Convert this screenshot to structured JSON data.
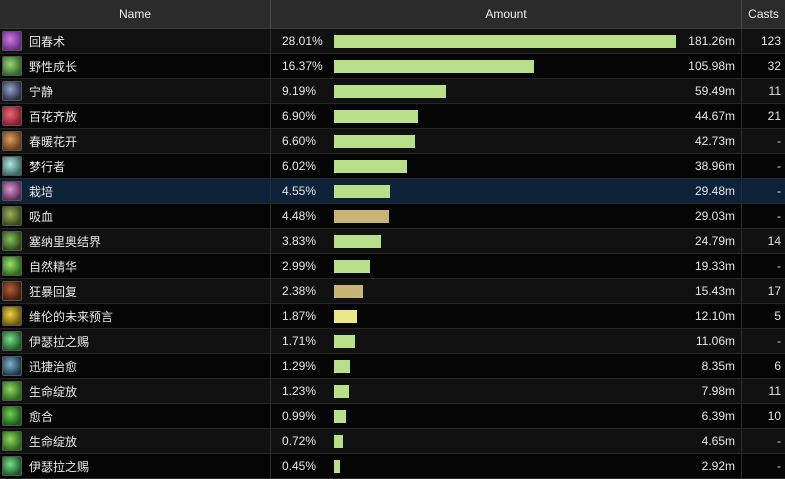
{
  "header": {
    "name": "Name",
    "amount": "Amount",
    "casts": "Casts"
  },
  "colors": {
    "green_bar": "#b8e08a",
    "tan_bar": "#c8b475",
    "yellow_bar": "#e8e88a"
  },
  "max_value": 181.26,
  "rows": [
    {
      "name": "回春术",
      "percent": "28.01%",
      "value": "181.26m",
      "fraction": 1.0,
      "casts": "123",
      "bar": "green",
      "icon": "rejuvenation-icon",
      "c1": "#6a2a8a",
      "c2": "#d27be0"
    },
    {
      "name": "野性成长",
      "percent": "16.37%",
      "value": "105.98m",
      "fraction": 0.5847,
      "casts": "32",
      "bar": "green",
      "icon": "wild-growth-icon",
      "c1": "#2f6a2a",
      "c2": "#9ad47a"
    },
    {
      "name": "宁静",
      "percent": "9.19%",
      "value": "59.49m",
      "fraction": 0.3282,
      "casts": "11",
      "bar": "green",
      "icon": "tranquility-icon",
      "c1": "#2a2f4a",
      "c2": "#9aa0c8"
    },
    {
      "name": "百花齐放",
      "percent": "6.90%",
      "value": "44.67m",
      "fraction": 0.2464,
      "casts": "21",
      "bar": "green",
      "icon": "efflorescence-icon",
      "c1": "#8a1a2a",
      "c2": "#e86a7a"
    },
    {
      "name": "春暖花开",
      "percent": "6.60%",
      "value": "42.73m",
      "fraction": 0.2357,
      "casts": "-",
      "bar": "green",
      "icon": "spring-blossoms-icon",
      "c1": "#6a3a1a",
      "c2": "#d8a060"
    },
    {
      "name": "梦行者",
      "percent": "6.02%",
      "value": "38.96m",
      "fraction": 0.2149,
      "casts": "-",
      "bar": "green",
      "icon": "dreamwalker-icon",
      "c1": "#3a6a6a",
      "c2": "#b0e8e0"
    },
    {
      "name": "栽培",
      "percent": "4.55%",
      "value": "29.48m",
      "fraction": 0.1626,
      "casts": "-",
      "bar": "green",
      "icon": "cultivation-icon",
      "c1": "#5a2a5a",
      "c2": "#d89ad0",
      "selected": true
    },
    {
      "name": "吸血",
      "percent": "4.48%",
      "value": "29.03m",
      "fraction": 0.1602,
      "casts": "-",
      "bar": "tan",
      "icon": "leech-icon",
      "c1": "#3a4a1a",
      "c2": "#9ab05a"
    },
    {
      "name": "塞纳里奥结界",
      "percent": "3.83%",
      "value": "24.79m",
      "fraction": 0.1368,
      "casts": "14",
      "bar": "green",
      "icon": "cenarion-ward-icon",
      "c1": "#2a4a1a",
      "c2": "#8ac05a"
    },
    {
      "name": "自然精华",
      "percent": "2.99%",
      "value": "19.33m",
      "fraction": 0.1066,
      "casts": "-",
      "bar": "green",
      "icon": "natures-essence-icon",
      "c1": "#2a6a1a",
      "c2": "#a0e070"
    },
    {
      "name": "狂暴回复",
      "percent": "2.38%",
      "value": "15.43m",
      "fraction": 0.0851,
      "casts": "17",
      "bar": "tan",
      "icon": "frenzied-regeneration-icon",
      "c1": "#4a1a0a",
      "c2": "#b0603a"
    },
    {
      "name": "维伦的未来预言",
      "percent": "1.87%",
      "value": "12.10m",
      "fraction": 0.0668,
      "casts": "5",
      "bar": "yellow",
      "icon": "velens-future-sight-icon",
      "c1": "#6a5a0a",
      "c2": "#f0d040"
    },
    {
      "name": "伊瑟拉之赐",
      "percent": "1.71%",
      "value": "11.06m",
      "fraction": 0.061,
      "casts": "-",
      "bar": "green",
      "icon": "ysera-gift-icon",
      "c1": "#1a5a2a",
      "c2": "#7ae08a"
    },
    {
      "name": "迅捷治愈",
      "percent": "1.29%",
      "value": "8.35m",
      "fraction": 0.0461,
      "casts": "6",
      "bar": "green",
      "icon": "swiftmend-icon",
      "c1": "#1a3a4a",
      "c2": "#80b0d0"
    },
    {
      "name": "生命绽放",
      "percent": "1.23%",
      "value": "7.98m",
      "fraction": 0.044,
      "casts": "11",
      "bar": "green",
      "icon": "lifebloom-icon",
      "c1": "#2a6a1a",
      "c2": "#90d860"
    },
    {
      "name": "愈合",
      "percent": "0.99%",
      "value": "6.39m",
      "fraction": 0.0353,
      "casts": "10",
      "bar": "green",
      "icon": "regrowth-icon",
      "c1": "#1a5a1a",
      "c2": "#70d050"
    },
    {
      "name": "生命绽放",
      "percent": "0.72%",
      "value": "4.65m",
      "fraction": 0.0257,
      "casts": "-",
      "bar": "green",
      "icon": "lifebloom-icon",
      "c1": "#2a6a1a",
      "c2": "#90d860"
    },
    {
      "name": "伊瑟拉之赐",
      "percent": "0.45%",
      "value": "2.92m",
      "fraction": 0.0161,
      "casts": "-",
      "bar": "green",
      "icon": "ysera-gift-icon",
      "c1": "#1a5a2a",
      "c2": "#7ae08a"
    }
  ]
}
